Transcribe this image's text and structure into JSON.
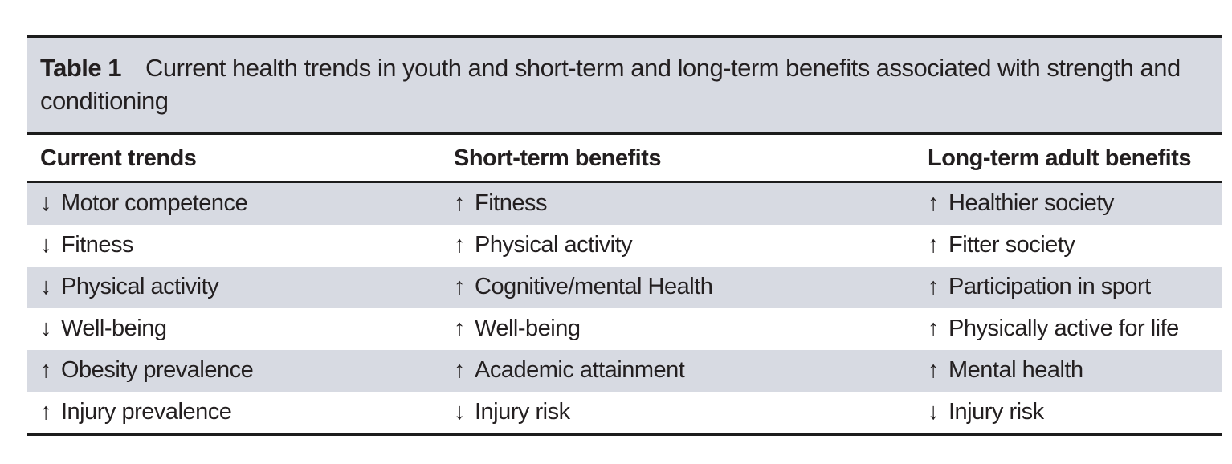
{
  "table": {
    "title_label": "Table 1",
    "title_text": "Current health trends in youth and short-term and long-term benefits associated with strength and conditioning",
    "columns": [
      "Current trends",
      "Short-term benefits",
      "Long-term adult benefits"
    ],
    "rows": [
      [
        {
          "arrow": "↓",
          "label": "Motor competence"
        },
        {
          "arrow": "↑",
          "label": "Fitness"
        },
        {
          "arrow": "↑",
          "label": "Healthier society"
        }
      ],
      [
        {
          "arrow": "↓",
          "label": "Fitness"
        },
        {
          "arrow": "↑",
          "label": "Physical activity"
        },
        {
          "arrow": "↑",
          "label": "Fitter society"
        }
      ],
      [
        {
          "arrow": "↓",
          "label": "Physical activity"
        },
        {
          "arrow": "↑",
          "label": "Cognitive/mental Health"
        },
        {
          "arrow": "↑",
          "label": "Participation in sport"
        }
      ],
      [
        {
          "arrow": "↓",
          "label": "Well-being"
        },
        {
          "arrow": "↑",
          "label": "Well-being"
        },
        {
          "arrow": "↑",
          "label": "Physically active for life"
        }
      ],
      [
        {
          "arrow": "↑",
          "label": "Obesity prevalence"
        },
        {
          "arrow": "↑",
          "label": "Academic attainment"
        },
        {
          "arrow": "↑",
          "label": "Mental health"
        }
      ],
      [
        {
          "arrow": "↑",
          "label": "Injury prevalence"
        },
        {
          "arrow": "↓",
          "label": "Injury risk"
        },
        {
          "arrow": "↓",
          "label": "Injury risk"
        }
      ]
    ]
  },
  "colors": {
    "row_shade": "#d7dae2",
    "rule": "#1c1c1c",
    "text": "#231f20"
  }
}
